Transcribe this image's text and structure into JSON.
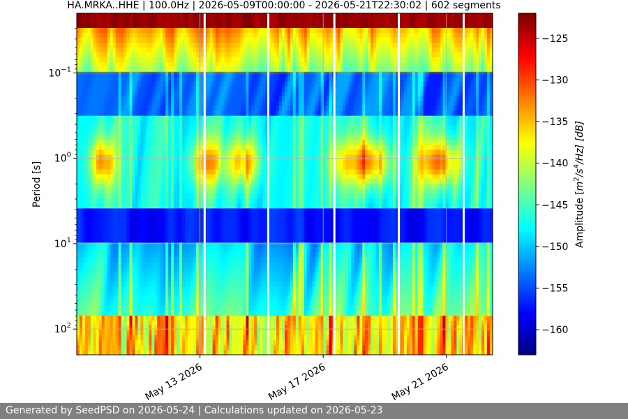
{
  "chart_data": {
    "type": "heatmap",
    "title": "HA.MRKA..HHE | 100.0Hz | 2026-05-09T00:00:00 - 2026-05-21T22:30:02 | 602 segments",
    "ylabel": "Period [s]",
    "colorbar_label": "Amplitude [m²/s⁴/Hz] [dB]",
    "colorbar_label_parts": {
      "pre": "Amplitude [",
      "m": "m",
      "sup2": "2",
      "mid": "/s",
      "sup4": "4",
      "post": "/Hz] [dB]"
    },
    "y_scale": "log",
    "ylim": [
      0.02,
      200
    ],
    "y_inverted": true,
    "y_ticks": [
      {
        "value": 0.1,
        "base": "10",
        "exp": "−1"
      },
      {
        "value": 1,
        "base": "10",
        "exp": "0"
      },
      {
        "value": 10,
        "base": "10",
        "exp": "1"
      },
      {
        "value": 100,
        "base": "10",
        "exp": "2"
      }
    ],
    "x_range": [
      "2026-05-09",
      "2026-05-22T12:00"
    ],
    "x_ticks": [
      {
        "date": "2026-05-13",
        "label": "May 13 2026"
      },
      {
        "date": "2026-05-17",
        "label": "May 17 2026"
      },
      {
        "date": "2026-05-21",
        "label": "May 21 2026"
      }
    ],
    "clim": [
      -163,
      -122
    ],
    "colorbar_ticks": [
      -125,
      -130,
      -135,
      -140,
      -145,
      -150,
      -155,
      -160
    ],
    "colormap": "jet",
    "grid": true,
    "segments": 602
  },
  "footer": {
    "text": "Generated by SeedPSD on 2026-05-24 | Calculations updated on 2026-05-23"
  }
}
